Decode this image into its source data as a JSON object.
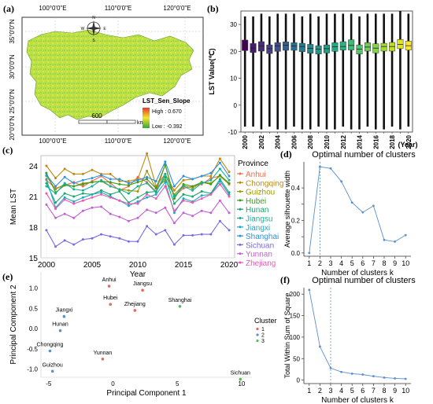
{
  "panel_labels": {
    "a": "(a)",
    "b": "(b)",
    "c": "(c)",
    "d": "(d)",
    "e": "(e)",
    "f": "(f)"
  },
  "panel_a": {
    "lon_ticks": [
      "100°0'0\"E",
      "110°0'0\"E",
      "120°0'0\"E"
    ],
    "lat_ticks": [
      "35°0'0\"N",
      "30°0'0\"N",
      "25°0'0\"N",
      "20°0'0\"N"
    ],
    "legend_title": "LST_Sen_Slope",
    "legend_high": "High : 0.670",
    "legend_low": "Low : -0.392",
    "scale_value": "600",
    "scale_unit": "km",
    "compass": [
      "N",
      "S",
      "W",
      "E"
    ],
    "colors": {
      "high": "#e8392a",
      "mid": "#f2e52b",
      "low": "#3aa53a"
    }
  },
  "chart_data": [
    {
      "id": "b",
      "type": "box",
      "ylabel": "LST Value(℃)",
      "xlabel": "(Year)",
      "ylim": [
        -10,
        35
      ],
      "yticks": [
        -10,
        0,
        10,
        20,
        30
      ],
      "categories": [
        "2000",
        "2001",
        "2002",
        "2003",
        "2004",
        "2005",
        "2006",
        "2007",
        "2008",
        "2009",
        "2010",
        "2011",
        "2012",
        "2013",
        "2014",
        "2015",
        "2016",
        "2017",
        "2018",
        "2019",
        "2020"
      ],
      "xtick_labels": [
        "2000",
        "2002",
        "2004",
        "2006",
        "2008",
        "2010",
        "2012",
        "2014",
        "2016",
        "2018",
        "2020"
      ],
      "whisker_low": [
        -8,
        -8,
        -9,
        -8,
        -9,
        -9,
        -8,
        -9,
        -9,
        -8,
        -9,
        -9,
        -8,
        -9,
        -9,
        -8,
        -9,
        -9,
        -8,
        -9,
        -8
      ],
      "q1": [
        20.3,
        19.6,
        20.1,
        19.2,
        20.0,
        20.4,
        20.4,
        19.9,
        19.3,
        19.0,
        19.4,
        20.0,
        20.5,
        20.5,
        19.0,
        20.1,
        19.4,
        20.1,
        20.1,
        21.0,
        20.5
      ],
      "median": [
        22.3,
        21.2,
        22.0,
        21.0,
        22.0,
        22.3,
        22.0,
        21.8,
        21.1,
        20.8,
        21.0,
        21.7,
        21.8,
        22.2,
        20.8,
        21.6,
        21.2,
        21.8,
        21.8,
        22.6,
        22.1
      ],
      "q3": [
        24.2,
        22.9,
        23.6,
        22.4,
        23.2,
        23.5,
        23.2,
        23.0,
        22.6,
        22.1,
        22.4,
        23.2,
        23.6,
        24.3,
        22.4,
        23.2,
        22.8,
        23.0,
        23.3,
        24.4,
        23.8
      ],
      "whisker_high": [
        33,
        33,
        34,
        33,
        34,
        34,
        34,
        33,
        34,
        33,
        34,
        34,
        34,
        34,
        33,
        34,
        34,
        34,
        34,
        35,
        34
      ],
      "colors": [
        "#440154",
        "#471b6e",
        "#472e7c",
        "#433e85",
        "#3c4f8a",
        "#355e8d",
        "#2e6d8e",
        "#287c8e",
        "#238a8d",
        "#1f988b",
        "#1fa187",
        "#22a884",
        "#2db27d",
        "#3dbc74",
        "#52c569",
        "#6ccd5a",
        "#83d34b",
        "#a2da37",
        "#c2df23",
        "#e2e418",
        "#fde725"
      ]
    },
    {
      "id": "c",
      "type": "line",
      "ylabel": "Mean LST",
      "xlabel": "Year",
      "xlim": [
        2000,
        2020
      ],
      "ylim": [
        15,
        25
      ],
      "xticks": [
        2000,
        2005,
        2010,
        2015,
        2020
      ],
      "yticks": [
        15,
        18,
        21,
        24
      ],
      "legend_title": "Province",
      "x": [
        2000,
        2001,
        2002,
        2003,
        2004,
        2005,
        2006,
        2007,
        2008,
        2009,
        2010,
        2011,
        2012,
        2013,
        2014,
        2015,
        2016,
        2017,
        2018,
        2019,
        2020
      ],
      "series": [
        {
          "name": "Anhui",
          "color": "#f26a4f",
          "values": [
            22.6,
            21.8,
            22.1,
            22.4,
            22.0,
            22.5,
            23.0,
            22.3,
            21.6,
            22.0,
            22.9,
            22.4,
            21.5,
            24.1,
            21.0,
            21.8,
            22.0,
            22.2,
            22.8,
            23.0,
            22.2
          ]
        },
        {
          "name": "Chongqing",
          "color": "#c08a10",
          "values": [
            24.0,
            22.8,
            23.7,
            23.2,
            23.2,
            23.6,
            23.2,
            23.2,
            22.5,
            22.5,
            22.7,
            25.2,
            22.0,
            23.2,
            21.6,
            22.6,
            22.7,
            23.0,
            23.0,
            24.7,
            23.4
          ]
        },
        {
          "name": "Guizhou",
          "color": "#9a9a00",
          "values": [
            23.0,
            21.7,
            22.2,
            22.0,
            22.3,
            22.4,
            22.5,
            22.0,
            21.7,
            21.6,
            21.5,
            23.5,
            21.8,
            22.6,
            21.2,
            22.1,
            21.8,
            22.4,
            22.3,
            23.0,
            22.2
          ]
        },
        {
          "name": "Hubei",
          "color": "#3a9d1e",
          "values": [
            23.3,
            21.4,
            22.1,
            22.0,
            22.2,
            22.4,
            22.5,
            22.4,
            22.2,
            22.1,
            22.4,
            22.7,
            21.8,
            24.1,
            20.8,
            22.2,
            22.0,
            22.4,
            22.2,
            23.1,
            22.3
          ]
        },
        {
          "name": "Hunan",
          "color": "#14a96b",
          "values": [
            22.3,
            20.4,
            21.3,
            21.0,
            21.3,
            21.2,
            21.6,
            21.2,
            21.5,
            20.4,
            20.9,
            21.4,
            21.5,
            22.9,
            20.3,
            21.2,
            21.0,
            21.5,
            21.3,
            22.7,
            21.4
          ]
        },
        {
          "name": "Jiangsu",
          "color": "#17b09a",
          "values": [
            22.0,
            21.3,
            22.3,
            21.7,
            21.6,
            22.0,
            22.6,
            22.0,
            21.7,
            21.3,
            22.0,
            22.3,
            21.4,
            23.2,
            21.0,
            22.0,
            21.6,
            22.3,
            22.6,
            23.7,
            22.6
          ]
        },
        {
          "name": "Jiangxi",
          "color": "#1aa9c9",
          "values": [
            22.7,
            19.9,
            20.9,
            20.5,
            20.9,
            21.2,
            21.4,
            21.0,
            20.6,
            20.1,
            20.5,
            20.9,
            21.2,
            22.4,
            19.4,
            20.8,
            20.5,
            21.1,
            21.2,
            22.5,
            21.2
          ]
        },
        {
          "name": "Shanghai",
          "color": "#2e8fe0",
          "values": [
            23.1,
            22.0,
            22.9,
            22.3,
            22.6,
            22.8,
            23.1,
            22.7,
            22.7,
            22.3,
            22.6,
            22.9,
            22.5,
            24.4,
            22.0,
            23.0,
            22.7,
            23.0,
            23.3,
            24.3,
            23.0
          ]
        },
        {
          "name": "Sichuan",
          "color": "#7a6be0",
          "values": [
            17.7,
            16.1,
            16.7,
            16.3,
            16.8,
            16.9,
            17.3,
            17.1,
            16.9,
            16.6,
            16.6,
            18.1,
            17.3,
            17.7,
            16.3,
            17.2,
            17.2,
            17.3,
            17.3,
            18.6,
            17.7
          ]
        },
        {
          "name": "Yunnan",
          "color": "#c25fd6",
          "values": [
            20.2,
            18.9,
            19.3,
            18.9,
            19.6,
            19.9,
            20.0,
            19.3,
            19.0,
            18.6,
            18.9,
            19.7,
            19.4,
            19.9,
            18.4,
            19.4,
            19.1,
            19.6,
            19.4,
            20.6,
            19.4
          ]
        },
        {
          "name": "Zhejiang",
          "color": "#e65bb0",
          "values": [
            21.3,
            19.8,
            20.7,
            20.3,
            20.6,
            20.9,
            21.2,
            20.9,
            20.6,
            20.3,
            20.3,
            21.2,
            20.8,
            22.0,
            19.6,
            20.6,
            20.4,
            20.8,
            21.2,
            22.2,
            21.0
          ]
        }
      ]
    },
    {
      "id": "d",
      "type": "line",
      "title": "Optimal number of clusters",
      "xlabel": "Number of clusters k",
      "ylabel": "Average silhouette width",
      "x": [
        1,
        2,
        3,
        4,
        5,
        6,
        7,
        8,
        9,
        10
      ],
      "values": [
        0.0,
        0.53,
        0.52,
        0.44,
        0.31,
        0.25,
        0.29,
        0.08,
        0.07,
        0.11
      ],
      "xlim": [
        0.5,
        10.5
      ],
      "ylim": [
        -0.02,
        0.56
      ],
      "yticks": [
        0.0,
        0.1,
        0.2,
        0.3,
        0.4
      ],
      "ytick_labels": [
        "0.0",
        "",
        "0.2",
        "",
        "0.4"
      ],
      "optimal_k": 2,
      "color": "#5b8fd0"
    },
    {
      "id": "e",
      "type": "scatter",
      "xlabel": "Principal Component 1",
      "ylabel": "Principal Component 2",
      "xlim": [
        -5.6,
        10.8
      ],
      "ylim": [
        -1.2,
        1.35
      ],
      "xticks": [
        -5,
        0,
        5,
        10
      ],
      "yticks": [
        -1.0,
        -0.5,
        0.0,
        0.5,
        1.0
      ],
      "legend_title": "Cluster",
      "clusters": [
        {
          "name": "1",
          "color": "#e8665a"
        },
        {
          "name": "2",
          "color": "#5b8fd0"
        },
        {
          "name": "3",
          "color": "#5bb85b"
        }
      ],
      "points": [
        {
          "label": "Anhui",
          "x": -0.3,
          "y": 1.05,
          "cluster": "1"
        },
        {
          "label": "Jiangsu",
          "x": 2.3,
          "y": 0.95,
          "cluster": "1"
        },
        {
          "label": "Hubei",
          "x": -0.2,
          "y": 0.6,
          "cluster": "1"
        },
        {
          "label": "Zhejiang",
          "x": 1.7,
          "y": 0.45,
          "cluster": "1"
        },
        {
          "label": "Shanghai",
          "x": 5.2,
          "y": 0.55,
          "cluster": "3"
        },
        {
          "label": "Jiangxi",
          "x": -3.8,
          "y": 0.3,
          "cluster": "2"
        },
        {
          "label": "Hunan",
          "x": -4.1,
          "y": -0.05,
          "cluster": "2"
        },
        {
          "label": "Chongqing",
          "x": -4.9,
          "y": -0.55,
          "cluster": "2"
        },
        {
          "label": "Yunnan",
          "x": -0.8,
          "y": -0.75,
          "cluster": "1"
        },
        {
          "label": "Guizhou",
          "x": -4.7,
          "y": -1.05,
          "cluster": "2"
        },
        {
          "label": "Sichuan",
          "x": 9.9,
          "y": -1.25,
          "cluster": "3"
        }
      ]
    },
    {
      "id": "f",
      "type": "line",
      "title": "Optimal number of clusters",
      "xlabel": "Number of clusters k",
      "ylabel": "Total Within Sum of Square",
      "x": [
        1,
        2,
        3,
        4,
        5,
        6,
        7,
        8,
        9,
        10
      ],
      "values": [
        210,
        78,
        28,
        19,
        15,
        13,
        9,
        6,
        4,
        3
      ],
      "xlim": [
        0.5,
        10.5
      ],
      "ylim": [
        -8,
        215
      ],
      "yticks": [
        0,
        50,
        100,
        150,
        200
      ],
      "optimal_k": 3,
      "color": "#5b8fd0"
    }
  ]
}
